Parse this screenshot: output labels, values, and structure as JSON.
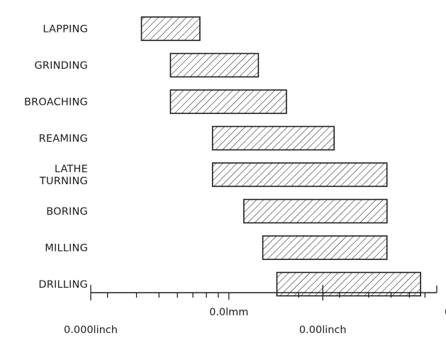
{
  "chart_data": {
    "type": "bar",
    "orientation": "horizontal",
    "scale": "log",
    "unit": "mm",
    "categories": [
      [
        "LAPPING"
      ],
      [
        "GRINDING"
      ],
      [
        "BROACHING"
      ],
      [
        "REAMING"
      ],
      [
        "LATHE",
        "TURNING"
      ],
      [
        "BORING"
      ],
      [
        "MILLING"
      ],
      [
        "DRILLING"
      ]
    ],
    "ranges_mm": [
      [
        0.0042,
        0.0075
      ],
      [
        0.0056,
        0.0134
      ],
      [
        0.0056,
        0.0177
      ],
      [
        0.0085,
        0.0284
      ],
      [
        0.0085,
        0.048
      ],
      [
        0.0116,
        0.048
      ],
      [
        0.014,
        0.048
      ],
      [
        0.0161,
        0.067
      ]
    ],
    "xlim_mm": [
      0.00254,
      0.0787
    ],
    "mm_axis": {
      "labels": [
        {
          "text": "0.0lmm",
          "value_mm": 0.01
        },
        {
          "text": "0.lmm",
          "value_mm": 0.1
        }
      ],
      "minor_ticks_mm": [
        0.003,
        0.004,
        0.005,
        0.006,
        0.007,
        0.008,
        0.009,
        0.02,
        0.03,
        0.04,
        0.05,
        0.06,
        0.07
      ]
    },
    "inch_axis": {
      "labels": [
        {
          "text": "0.000linch",
          "value_mm": 0.00254
        },
        {
          "text": "0.00linch",
          "value_mm": 0.0254
        },
        {
          "text": "0.0linch",
          "value_mm": 0.254
        }
      ]
    }
  }
}
